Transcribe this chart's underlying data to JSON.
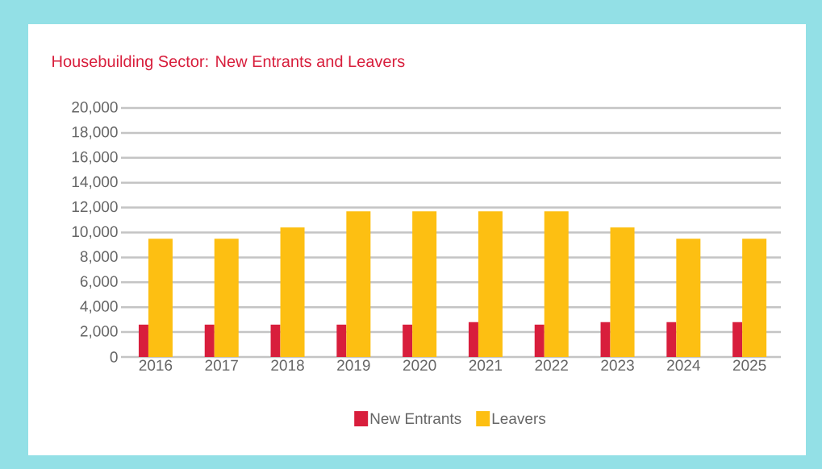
{
  "chart_data": {
    "type": "bar",
    "title": "Housebuilding Sector: New Entrants and Leavers",
    "categories": [
      "2016",
      "2017",
      "2018",
      "2019",
      "2020",
      "2021",
      "2022",
      "2023",
      "2024",
      "2025"
    ],
    "series": [
      {
        "name": "New Entrants",
        "color": "#d81e3c",
        "values": [
          2600,
          2600,
          2600,
          2600,
          2600,
          2800,
          2600,
          2800,
          2800,
          2800
        ]
      },
      {
        "name": "Leavers",
        "color": "#fdbf12",
        "values": [
          9500,
          9500,
          10400,
          11700,
          11700,
          11700,
          11700,
          10400,
          9500,
          9500
        ]
      }
    ],
    "ylim": [
      0,
      20000
    ],
    "yticks": [
      0,
      {
        "value": 2000,
        "label": "2,000"
      },
      {
        "value": 4000,
        "label": "4,000"
      },
      {
        "value": 6000,
        "label": "6,000"
      },
      {
        "value": 8000,
        "label": "8,000"
      },
      {
        "value": 10000,
        "label": "10,000"
      },
      {
        "value": 12000,
        "label": "12,000"
      },
      {
        "value": 14000,
        "label": "14,000"
      },
      {
        "value": 16000,
        "label": "16,000"
      },
      {
        "value": 18000,
        "label": "18,000"
      },
      {
        "value": 20000,
        "label": "20,000"
      }
    ],
    "grid": "y",
    "legend": "bottom"
  }
}
